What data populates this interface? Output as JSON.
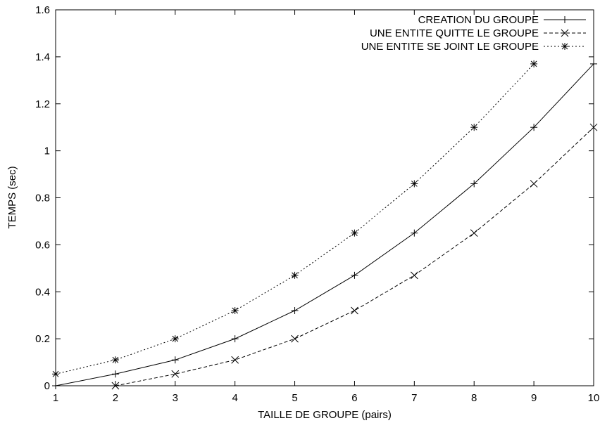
{
  "chart_data": {
    "type": "line",
    "xlabel": "TAILLE DE GROUPE (pairs)",
    "ylabel": "TEMPS (sec)",
    "xlim": [
      1,
      10
    ],
    "ylim": [
      0,
      1.6
    ],
    "xticks": [
      "1",
      "2",
      "3",
      "4",
      "5",
      "6",
      "7",
      "8",
      "9",
      "10"
    ],
    "yticks": [
      "0",
      "0.2",
      "0.4",
      "0.6",
      "0.8",
      "1",
      "1.2",
      "1.4",
      "1.6"
    ],
    "grid": false,
    "legend_position": "top-right",
    "series": [
      {
        "name": "CREATION DU GROUPE",
        "marker": "plus",
        "dash": "solid",
        "x": [
          1,
          2,
          3,
          4,
          5,
          6,
          7,
          8,
          9,
          10
        ],
        "y": [
          0.0,
          0.05,
          0.11,
          0.2,
          0.32,
          0.47,
          0.65,
          0.86,
          1.1,
          1.37
        ]
      },
      {
        "name": "UNE ENTITE QUITTE LE GROUPE",
        "marker": "cross",
        "dash": "dashed",
        "x": [
          2,
          3,
          4,
          5,
          6,
          7,
          8,
          9,
          10
        ],
        "y": [
          0.0,
          0.05,
          0.11,
          0.2,
          0.32,
          0.47,
          0.65,
          0.86,
          1.1
        ]
      },
      {
        "name": "UNE ENTITE SE JOINT LE GROUPE",
        "marker": "star",
        "dash": "dotted",
        "x": [
          1,
          2,
          3,
          4,
          5,
          6,
          7,
          8,
          9
        ],
        "y": [
          0.05,
          0.11,
          0.2,
          0.32,
          0.47,
          0.65,
          0.86,
          1.1,
          1.37
        ]
      }
    ]
  }
}
